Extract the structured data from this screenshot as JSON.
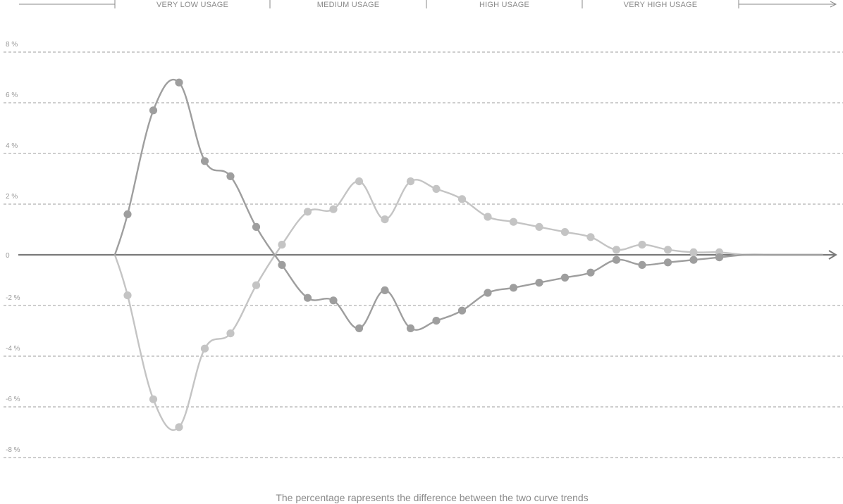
{
  "chart_data": {
    "type": "line",
    "title": "",
    "xlabel": "",
    "ylabel": "",
    "ylim": [
      -8,
      8
    ],
    "yticks": [
      8,
      6,
      4,
      2,
      0,
      -2,
      -4,
      -6,
      -8
    ],
    "ytick_labels": [
      "8 %",
      "6 %",
      "4 %",
      "2 %",
      "0",
      "-2 %",
      "-4 %",
      "-6 %",
      "-8 %"
    ],
    "grid": true,
    "legend": "none",
    "bands": [
      "VERY LOW USAGE",
      "MEDIUM USAGE",
      "HIGH USAGE",
      "VERY HIGH USAGE"
    ],
    "x": [
      1,
      2,
      3,
      4,
      5,
      6,
      7,
      8,
      9,
      10,
      11,
      12,
      13,
      14,
      15,
      16,
      17,
      18,
      19,
      20,
      21,
      22,
      23,
      24,
      25,
      26,
      27,
      28
    ],
    "series": [
      {
        "color": "#9e9e9e",
        "values": [
          1.6,
          5.7,
          6.8,
          3.7,
          3.1,
          1.1,
          -0.4,
          -1.7,
          -1.8,
          -2.9,
          -1.4,
          -2.9,
          -2.6,
          -2.2,
          -1.5,
          -1.3,
          -1.1,
          -0.9,
          -0.7,
          -0.2,
          -0.4,
          -0.3,
          -0.2,
          -0.1,
          0,
          0,
          0,
          0
        ]
      },
      {
        "color": "#c4c4c4",
        "values": [
          -1.6,
          -5.7,
          -6.8,
          -3.7,
          -3.1,
          -1.2,
          0.4,
          1.7,
          1.8,
          2.9,
          1.4,
          2.9,
          2.6,
          2.2,
          1.5,
          1.3,
          1.1,
          0.9,
          0.7,
          0.2,
          0.4,
          0.2,
          0.1,
          0.1,
          0,
          0,
          0,
          0
        ]
      }
    ],
    "annotations": [
      "The percentage rapresents the difference between the two curve trends"
    ]
  }
}
